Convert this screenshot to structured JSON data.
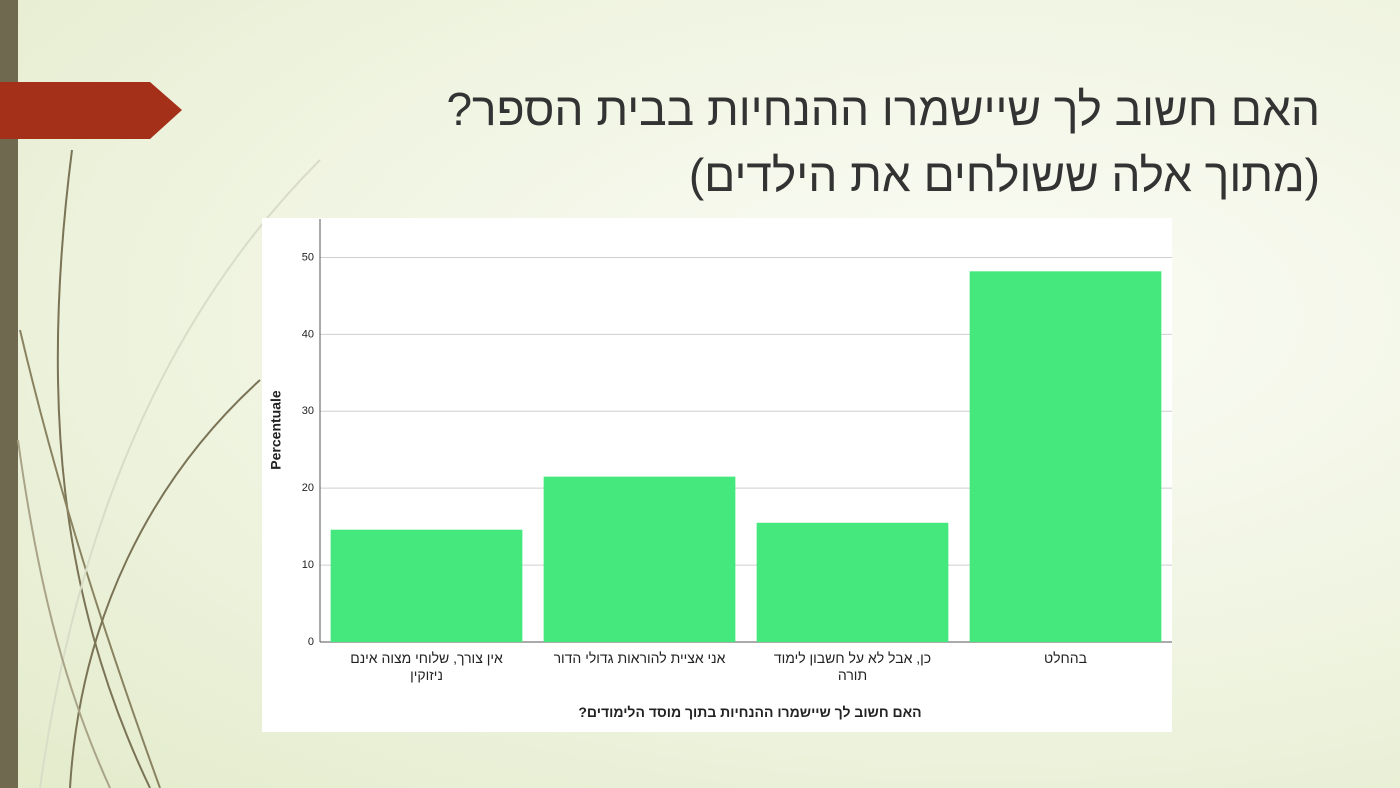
{
  "slide_title": [
    "האם חשוב לך שיישמרו ההנחיות בבית הספר?",
    "(מתוך אלה ששולחים את הילדים)"
  ],
  "chart_data": {
    "type": "bar",
    "categories": [
      "אין צורך, שלוחי מצוה אינם ניזוקין",
      "אני אציית להוראות גדולי הדור",
      "כן, אבל לא על חשבון לימוד תורה",
      "בהחלט"
    ],
    "values": [
      14.6,
      21.5,
      15.5,
      48.2
    ],
    "color": "#44e87c",
    "ylabel": "Percentuale",
    "xlabel": "האם חשוב לך שיישמרו ההנחיות בתוך מוסד הלימודים?",
    "ylim": [
      0,
      55
    ],
    "yticks": [
      0,
      10,
      20,
      30,
      40,
      50
    ],
    "grid": true
  }
}
